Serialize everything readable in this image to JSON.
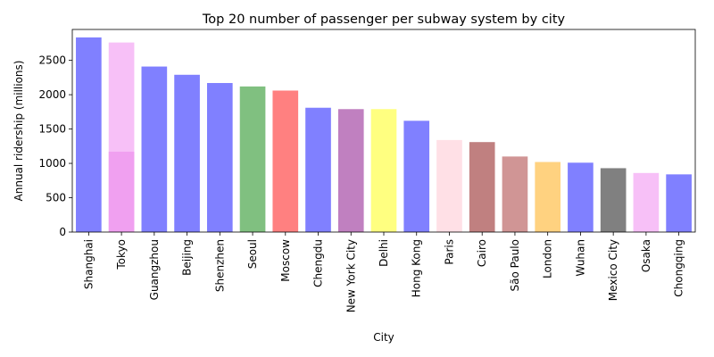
{
  "chart_data": {
    "type": "bar",
    "title": "Top 20 number of passenger per subway system by city",
    "xlabel": "City",
    "ylabel": "Annual ridership (millions)",
    "ylim": [
      0,
      2950
    ],
    "yticks": [
      0,
      500,
      1000,
      1500,
      2000,
      2500
    ],
    "grid": false,
    "categories": [
      "Shanghai",
      "Tokyo",
      "Guangzhou",
      "Beijing",
      "Shenzhen",
      "Seoul",
      "Moscow",
      "Chengdu",
      "New York City",
      "Delhi",
      "Hong Kong",
      "Paris",
      "Cairo",
      "São Paulo",
      "London",
      "Wuhan",
      "Mexico City",
      "Osaka",
      "Chongqing"
    ],
    "bars": [
      {
        "category": "Shanghai",
        "value": 2834,
        "color": "#8080ff"
      },
      {
        "category": "Tokyo",
        "value": 2760,
        "color": "#f7c0f7"
      },
      {
        "category": "Tokyo",
        "value": 1170,
        "color": "#f0a0f0"
      },
      {
        "category": "Guangzhou",
        "value": 2410,
        "color": "#8080ff"
      },
      {
        "category": "Beijing",
        "value": 2290,
        "color": "#8080ff"
      },
      {
        "category": "Shenzhen",
        "value": 2170,
        "color": "#8080ff"
      },
      {
        "category": "Seoul",
        "value": 2120,
        "color": "#80c080"
      },
      {
        "category": "Moscow",
        "value": 2060,
        "color": "#ff8080"
      },
      {
        "category": "Chengdu",
        "value": 1810,
        "color": "#8080ff"
      },
      {
        "category": "New York City",
        "value": 1790,
        "color": "#c080c0"
      },
      {
        "category": "Delhi",
        "value": 1790,
        "color": "#ffff80"
      },
      {
        "category": "Hong Kong",
        "value": 1620,
        "color": "#8080ff"
      },
      {
        "category": "Paris",
        "value": 1340,
        "color": "#ffe0e6"
      },
      {
        "category": "Cairo",
        "value": 1310,
        "color": "#c08080"
      },
      {
        "category": "São Paulo",
        "value": 1100,
        "color": "#d09595"
      },
      {
        "category": "London",
        "value": 1020,
        "color": "#ffd280"
      },
      {
        "category": "Wuhan",
        "value": 1010,
        "color": "#8080ff"
      },
      {
        "category": "Mexico City",
        "value": 930,
        "color": "#808080"
      },
      {
        "category": "Osaka",
        "value": 860,
        "color": "#f7c0f7"
      },
      {
        "category": "Chongqing",
        "value": 840,
        "color": "#8080ff"
      }
    ]
  }
}
